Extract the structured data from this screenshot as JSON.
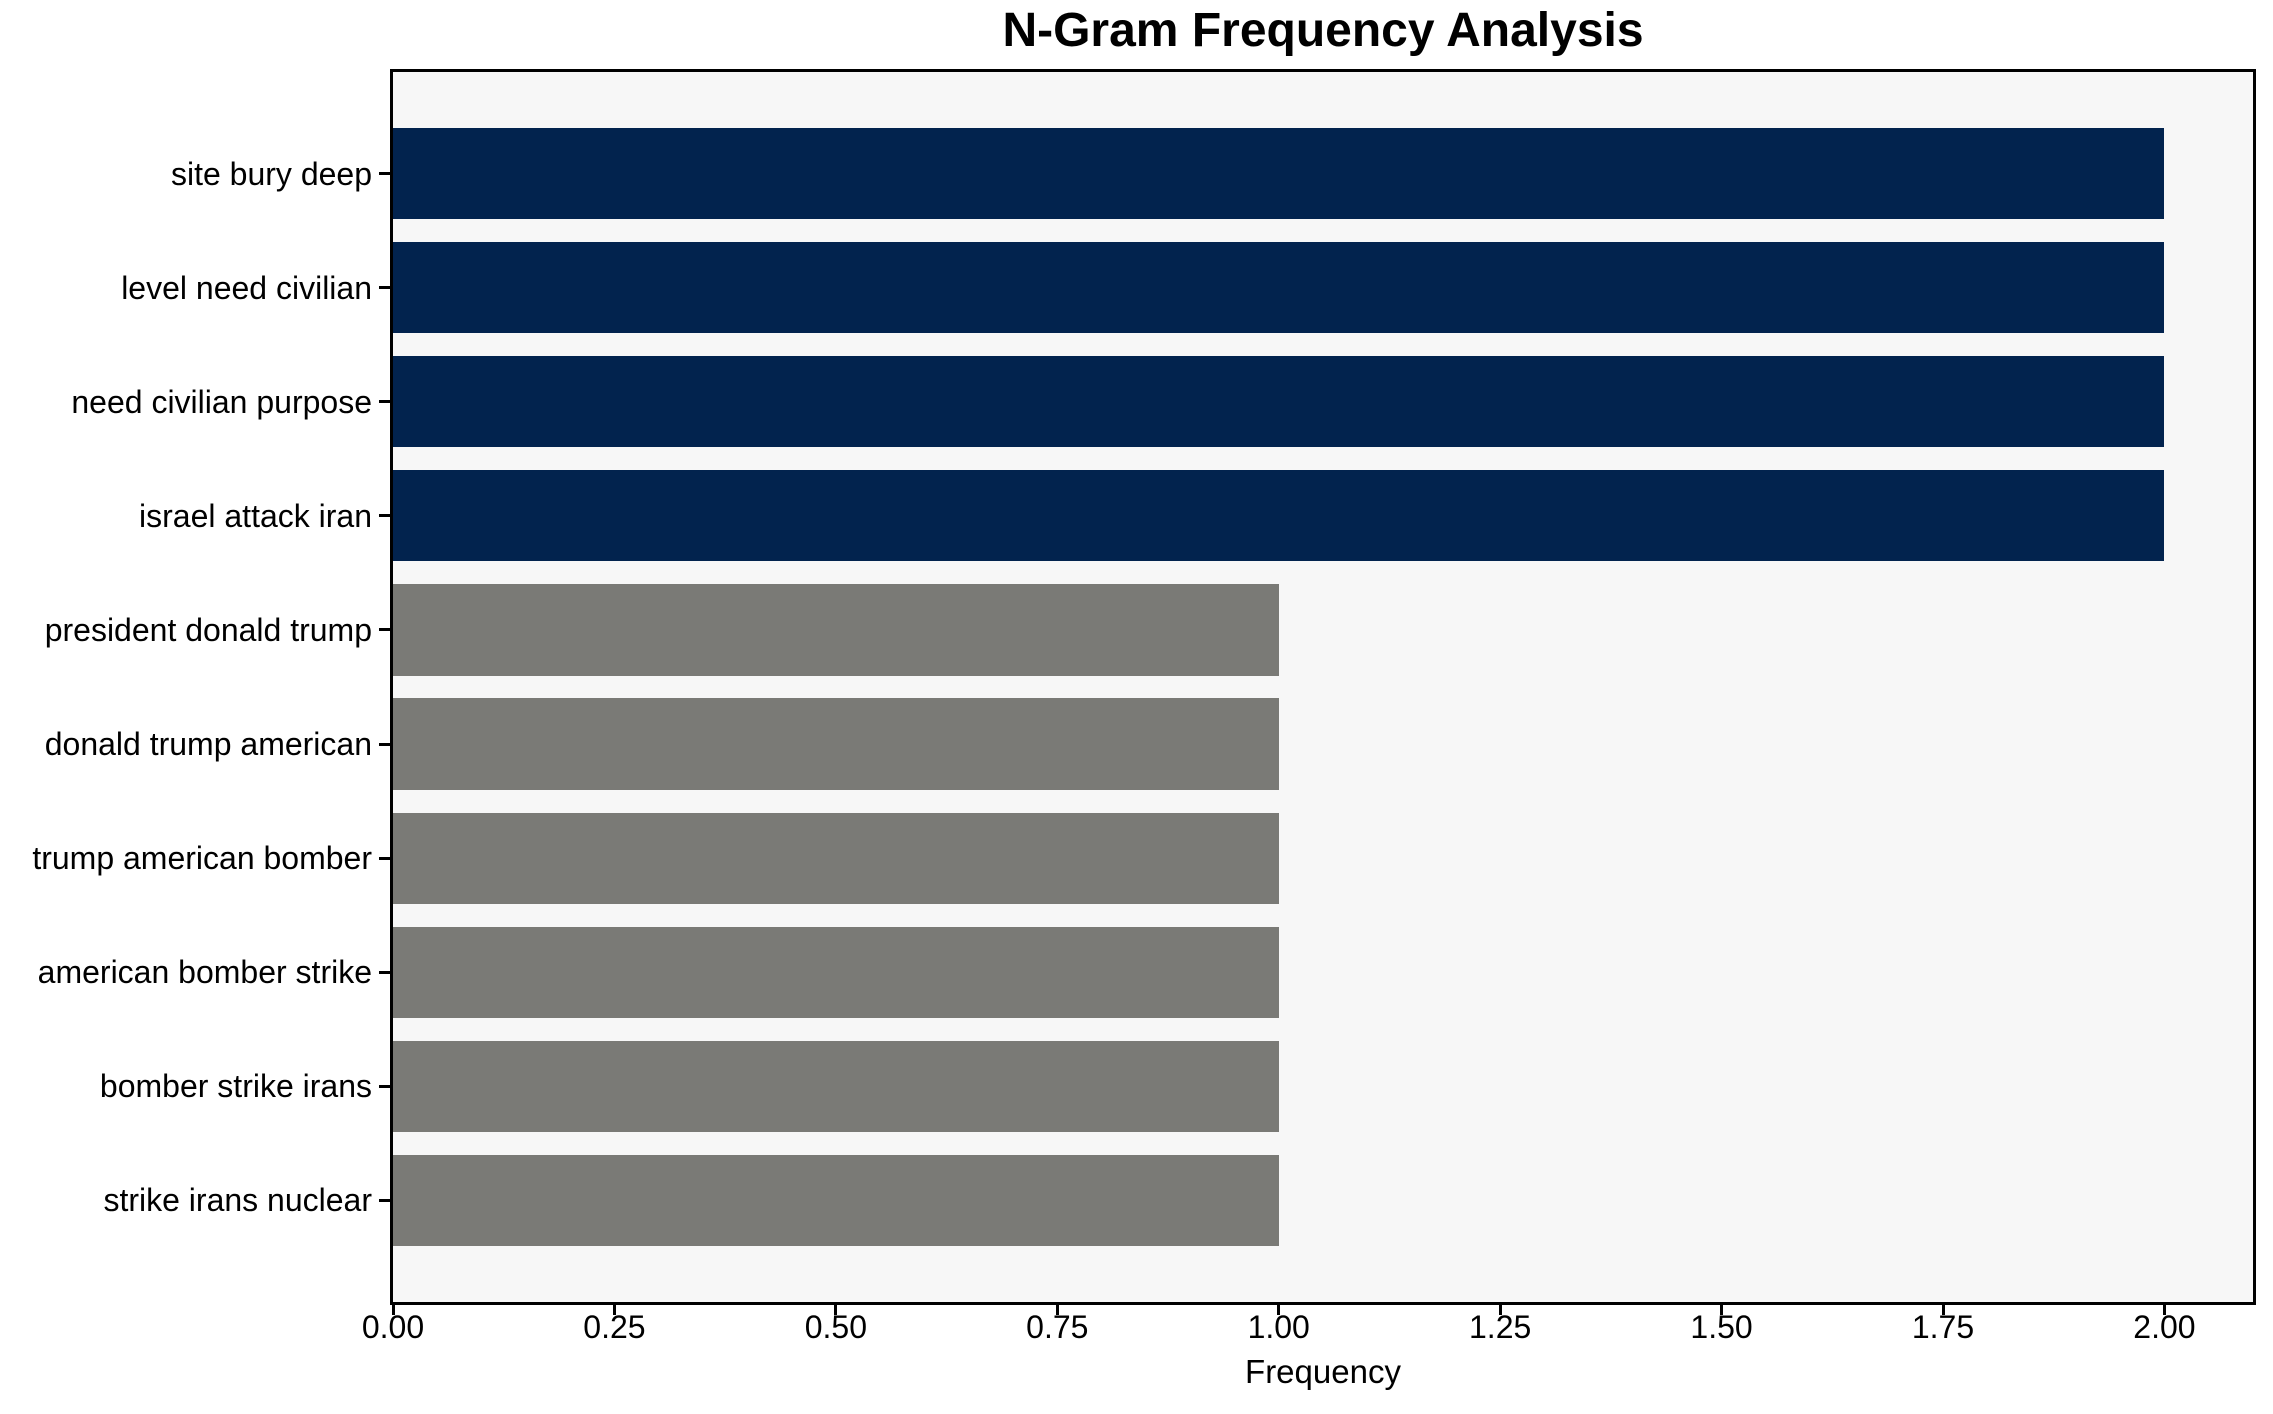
{
  "chart_data": {
    "type": "bar",
    "orientation": "horizontal",
    "title": "N-Gram Frequency Analysis",
    "xlabel": "Frequency",
    "ylabel": "",
    "categories": [
      "site bury deep",
      "level need civilian",
      "need civilian purpose",
      "israel attack iran",
      "president donald trump",
      "donald trump american",
      "trump american bomber",
      "american bomber strike",
      "bomber strike irans",
      "strike irans nuclear"
    ],
    "values": [
      2,
      2,
      2,
      2,
      1,
      1,
      1,
      1,
      1,
      1
    ],
    "bar_colors": [
      "#02234e",
      "#02234e",
      "#02234e",
      "#02234e",
      "#7a7a76",
      "#7a7a76",
      "#7a7a76",
      "#7a7a76",
      "#7a7a76",
      "#7a7a76"
    ],
    "xlim": [
      0,
      2.1
    ],
    "xtick_values": [
      0,
      0.25,
      0.5,
      0.75,
      1.0,
      1.25,
      1.5,
      1.75,
      2.0
    ],
    "xtick_labels": [
      "0.00",
      "0.25",
      "0.50",
      "0.75",
      "1.00",
      "1.25",
      "1.50",
      "1.75",
      "2.00"
    ],
    "grid": false,
    "legend": null,
    "colors": {
      "high_frequency_bar": "#02234e",
      "low_frequency_bar": "#7a7a76",
      "plot_background": "#f7f7f7",
      "figure_background": "#ffffff",
      "axis": "#000000",
      "text": "#000000"
    }
  }
}
